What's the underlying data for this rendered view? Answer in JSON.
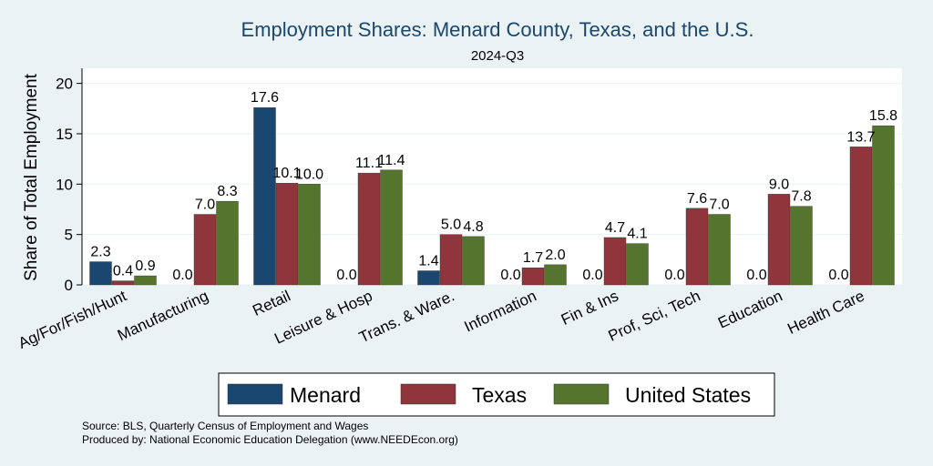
{
  "chart_data": {
    "type": "bar",
    "title": "Employment Shares: Menard County, Texas, and the U.S.",
    "subtitle": "2024-Q3",
    "xlabel": "",
    "ylabel": "Share of Total Employment",
    "ylim": [
      0,
      21.5
    ],
    "yticks": [
      0,
      5,
      10,
      15,
      20
    ],
    "grid": true,
    "legend_position": "bottom",
    "categories": [
      "Ag/For/Fish/Hunt",
      "Manufacturing",
      "Retail",
      "Leisure & Hosp",
      "Trans. & Ware.",
      "Information",
      "Fin & Ins",
      "Prof, Sci, Tech",
      "Education",
      "Health Care"
    ],
    "series": [
      {
        "name": "Menard",
        "color": "#1a476f",
        "values": [
          2.3,
          0.0,
          17.6,
          0.0,
          1.4,
          0.0,
          0.0,
          0.0,
          0.0,
          0.0
        ],
        "labels": [
          "2.3",
          "0.0",
          "17.6",
          "0.0",
          "1.4",
          "0.0",
          "0.0",
          "0.0",
          "0.0",
          "0.0"
        ]
      },
      {
        "name": "Texas",
        "color": "#90353b",
        "values": [
          0.4,
          7.0,
          10.1,
          11.1,
          5.0,
          1.7,
          4.7,
          7.6,
          9.0,
          13.7
        ],
        "labels": [
          "0.4",
          "7.0",
          "10.1",
          "11.1",
          "5.0",
          "1.7",
          "4.7",
          "7.6",
          "9.0",
          "13.7"
        ]
      },
      {
        "name": "United States",
        "color": "#55752f",
        "values": [
          0.9,
          8.3,
          10.0,
          11.4,
          4.8,
          2.0,
          4.1,
          7.0,
          7.8,
          15.8
        ],
        "labels": [
          "0.9",
          "8.3",
          "10.0",
          "11.4",
          "4.8",
          "2.0",
          "4.1",
          "7.0",
          "7.8",
          "15.8"
        ]
      }
    ]
  },
  "notes": {
    "source": "Source: BLS, Quarterly Census of Employment and Wages",
    "produced_by": "Produced by: National Economic Education Delegation (www.NEEDEcon.org)"
  }
}
